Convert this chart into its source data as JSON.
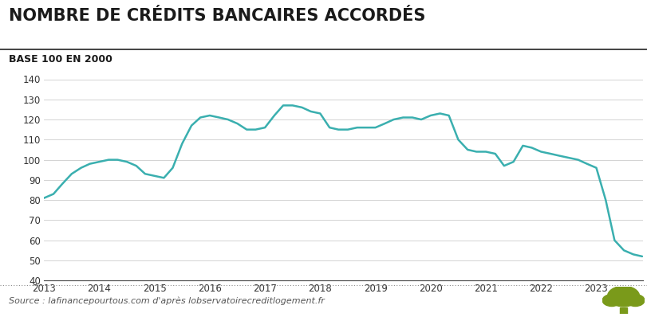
{
  "title": "NOMBRE DE CRÉDITS BANCAIRES ACCORDÉS",
  "subtitle": "BASE 100 EN 2000",
  "source": "Source : lafinancepourtous.com d'après lobservatoirecreditlogement.fr",
  "line_color": "#3aafaf",
  "background_color": "#ffffff",
  "ylim": [
    40,
    140
  ],
  "yticks": [
    40,
    50,
    60,
    70,
    80,
    90,
    100,
    110,
    120,
    130,
    140
  ],
  "x_values": [
    2013.0,
    2013.17,
    2013.33,
    2013.5,
    2013.67,
    2013.83,
    2014.0,
    2014.17,
    2014.33,
    2014.5,
    2014.67,
    2014.83,
    2015.0,
    2015.17,
    2015.33,
    2015.5,
    2015.67,
    2015.83,
    2016.0,
    2016.17,
    2016.33,
    2016.5,
    2016.67,
    2016.83,
    2017.0,
    2017.17,
    2017.33,
    2017.5,
    2017.67,
    2017.83,
    2018.0,
    2018.17,
    2018.33,
    2018.5,
    2018.67,
    2018.83,
    2019.0,
    2019.17,
    2019.33,
    2019.5,
    2019.67,
    2019.83,
    2020.0,
    2020.17,
    2020.33,
    2020.5,
    2020.67,
    2020.83,
    2021.0,
    2021.17,
    2021.33,
    2021.5,
    2021.67,
    2021.83,
    2022.0,
    2022.17,
    2022.33,
    2022.5,
    2022.67,
    2022.83,
    2023.0,
    2023.17,
    2023.33,
    2023.5,
    2023.67,
    2023.83
  ],
  "y_values": [
    81,
    83,
    88,
    93,
    96,
    98,
    99,
    100,
    100,
    99,
    97,
    93,
    92,
    91,
    96,
    108,
    117,
    121,
    122,
    121,
    120,
    118,
    115,
    115,
    116,
    122,
    127,
    127,
    126,
    124,
    123,
    116,
    115,
    115,
    116,
    116,
    116,
    118,
    120,
    121,
    121,
    120,
    122,
    123,
    122,
    110,
    105,
    104,
    104,
    103,
    97,
    99,
    107,
    106,
    104,
    103,
    102,
    101,
    100,
    98,
    96,
    80,
    60,
    55,
    53,
    52
  ],
  "xticks": [
    2013,
    2014,
    2015,
    2016,
    2017,
    2018,
    2019,
    2020,
    2021,
    2022,
    2023
  ],
  "xlim": [
    2013,
    2023.85
  ],
  "title_fontsize": 15,
  "subtitle_fontsize": 9,
  "tick_fontsize": 8.5,
  "source_fontsize": 8,
  "line_width": 1.8
}
